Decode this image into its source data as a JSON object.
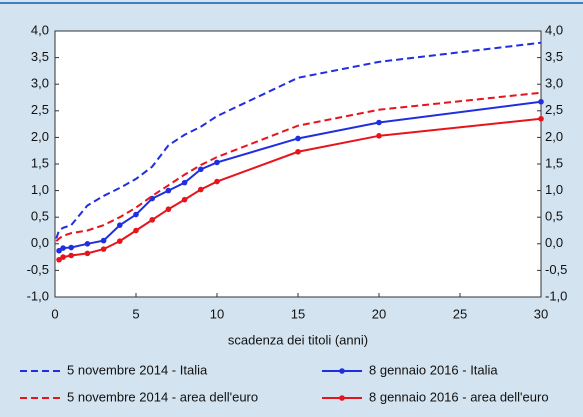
{
  "chart_data": {
    "type": "line",
    "xlabel": "scadenza dei titoli (anni)",
    "xlim": [
      0,
      30
    ],
    "xticks": [
      0,
      5,
      10,
      15,
      20,
      25,
      30
    ],
    "ylim": [
      -1,
      4
    ],
    "yticks": [
      {
        "value": -1,
        "label": "-1,0"
      },
      {
        "value": -0.5,
        "label": "-0,5"
      },
      {
        "value": 0,
        "label": "0,0"
      },
      {
        "value": 0.5,
        "label": "0,5"
      },
      {
        "value": 1,
        "label": "1,0"
      },
      {
        "value": 1.5,
        "label": "1,5"
      },
      {
        "value": 2,
        "label": "2,0"
      },
      {
        "value": 2.5,
        "label": "2,5"
      },
      {
        "value": 3,
        "label": "3,0"
      },
      {
        "value": 3.5,
        "label": "3,5"
      },
      {
        "value": 4,
        "label": "4,0"
      }
    ],
    "y2lim": [
      -1,
      4
    ],
    "y2ticks": [
      {
        "value": -1,
        "label": "-1,0"
      },
      {
        "value": -0.5,
        "label": "-0,5"
      },
      {
        "value": 0,
        "label": "0,0"
      },
      {
        "value": 0.5,
        "label": "0,5"
      },
      {
        "value": 1,
        "label": "1,0"
      },
      {
        "value": 1.5,
        "label": "1,5"
      },
      {
        "value": 2,
        "label": "2,0"
      },
      {
        "value": 2.5,
        "label": "2,5"
      },
      {
        "value": 3,
        "label": "3,0"
      },
      {
        "value": 3.5,
        "label": "3,5"
      },
      {
        "value": 4,
        "label": "4,0"
      }
    ],
    "series": [
      {
        "name": "5 novembre 2014 - Italia",
        "color": "#1f2fe0",
        "dashed": true,
        "markers": false,
        "x": [
          0.08,
          0.25,
          0.5,
          1,
          2,
          3,
          4,
          5,
          6,
          7,
          8,
          9,
          10,
          15,
          20,
          30
        ],
        "values": [
          0.1,
          0.25,
          0.3,
          0.35,
          0.72,
          0.9,
          1.05,
          1.22,
          1.45,
          1.85,
          2.05,
          2.2,
          2.4,
          3.12,
          3.42,
          3.78
        ]
      },
      {
        "name": "8 gennaio 2016 - Italia",
        "color": "#1f2fe0",
        "dashed": false,
        "markers": true,
        "x": [
          0.25,
          0.5,
          1,
          2,
          3,
          4,
          5,
          6,
          7,
          8,
          9,
          10,
          15,
          20,
          30
        ],
        "values": [
          -0.13,
          -0.08,
          -0.07,
          0.0,
          0.06,
          0.35,
          0.55,
          0.85,
          1.0,
          1.15,
          1.4,
          1.53,
          1.98,
          2.28,
          2.67
        ]
      },
      {
        "name": "5 novembre 2014 - area dell'euro",
        "color": "#e8141c",
        "dashed": true,
        "markers": false,
        "x": [
          0.08,
          0.25,
          0.5,
          1,
          2,
          3,
          4,
          5,
          6,
          7,
          8,
          9,
          10,
          15,
          20,
          30
        ],
        "values": [
          0.05,
          0.1,
          0.15,
          0.2,
          0.25,
          0.35,
          0.5,
          0.68,
          0.9,
          1.1,
          1.3,
          1.48,
          1.63,
          2.22,
          2.52,
          2.84
        ]
      },
      {
        "name": "8 gennaio 2016 - area dell'euro",
        "color": "#e8141c",
        "dashed": false,
        "markers": true,
        "x": [
          0.25,
          0.5,
          1,
          2,
          3,
          4,
          5,
          6,
          7,
          8,
          9,
          10,
          15,
          20,
          30
        ],
        "values": [
          -0.3,
          -0.25,
          -0.22,
          -0.18,
          -0.1,
          0.05,
          0.25,
          0.45,
          0.65,
          0.83,
          1.02,
          1.17,
          1.73,
          2.03,
          2.35
        ]
      }
    ]
  }
}
